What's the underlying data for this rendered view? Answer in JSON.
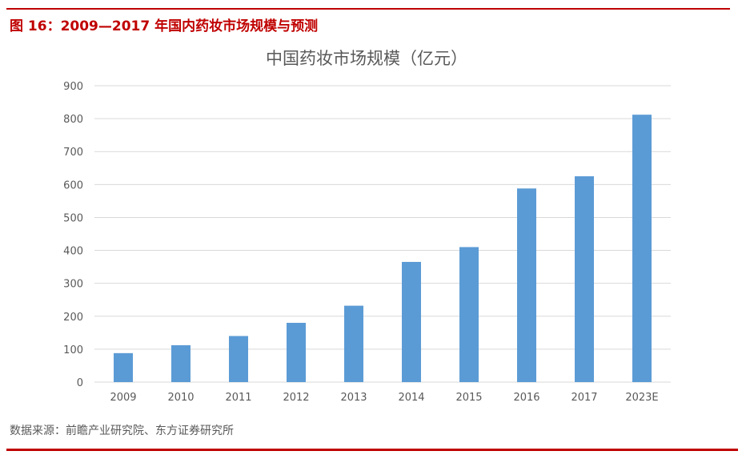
{
  "figure": {
    "caption": "图 16：2009—2017 年国内药妆市场规模与预测",
    "source": "数据来源：前瞻产业研究院、东方证券研究所"
  },
  "colors": {
    "accent": "#c00000",
    "bar": "#5b9bd5",
    "grid": "#d9d9d9",
    "axis_text": "#595959",
    "title_text": "#595959"
  },
  "chart_data": {
    "type": "bar",
    "title": "中国药妆市场规模（亿元）",
    "xlabel": "",
    "ylabel": "",
    "categories": [
      "2009",
      "2010",
      "2011",
      "2012",
      "2013",
      "2014",
      "2015",
      "2016",
      "2017",
      "2023E"
    ],
    "values": [
      88,
      112,
      140,
      180,
      232,
      365,
      410,
      588,
      625,
      812
    ],
    "ylim": [
      0,
      900
    ],
    "yticks": [
      0,
      100,
      200,
      300,
      400,
      500,
      600,
      700,
      800,
      900
    ],
    "grid": true,
    "legend": "none"
  }
}
